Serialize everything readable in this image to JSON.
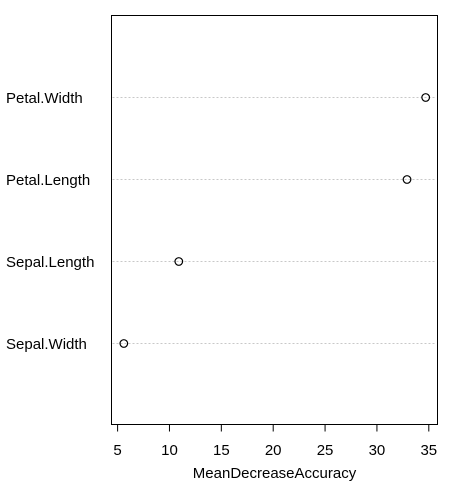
{
  "chart_data": {
    "type": "scatter",
    "title": "",
    "xlabel": "MeanDecreaseAccuracy",
    "ylabel": "",
    "categories": [
      "Petal.Width",
      "Petal.Length",
      "Sepal.Length",
      "Sepal.Width"
    ],
    "values": [
      34.7,
      32.9,
      10.9,
      5.6
    ],
    "xlim": [
      4.6,
      35.8
    ],
    "xticks": [
      5,
      10,
      15,
      20,
      25,
      30,
      35
    ],
    "grid": "dotted horizontal guide lines per variable",
    "legend": "none"
  }
}
